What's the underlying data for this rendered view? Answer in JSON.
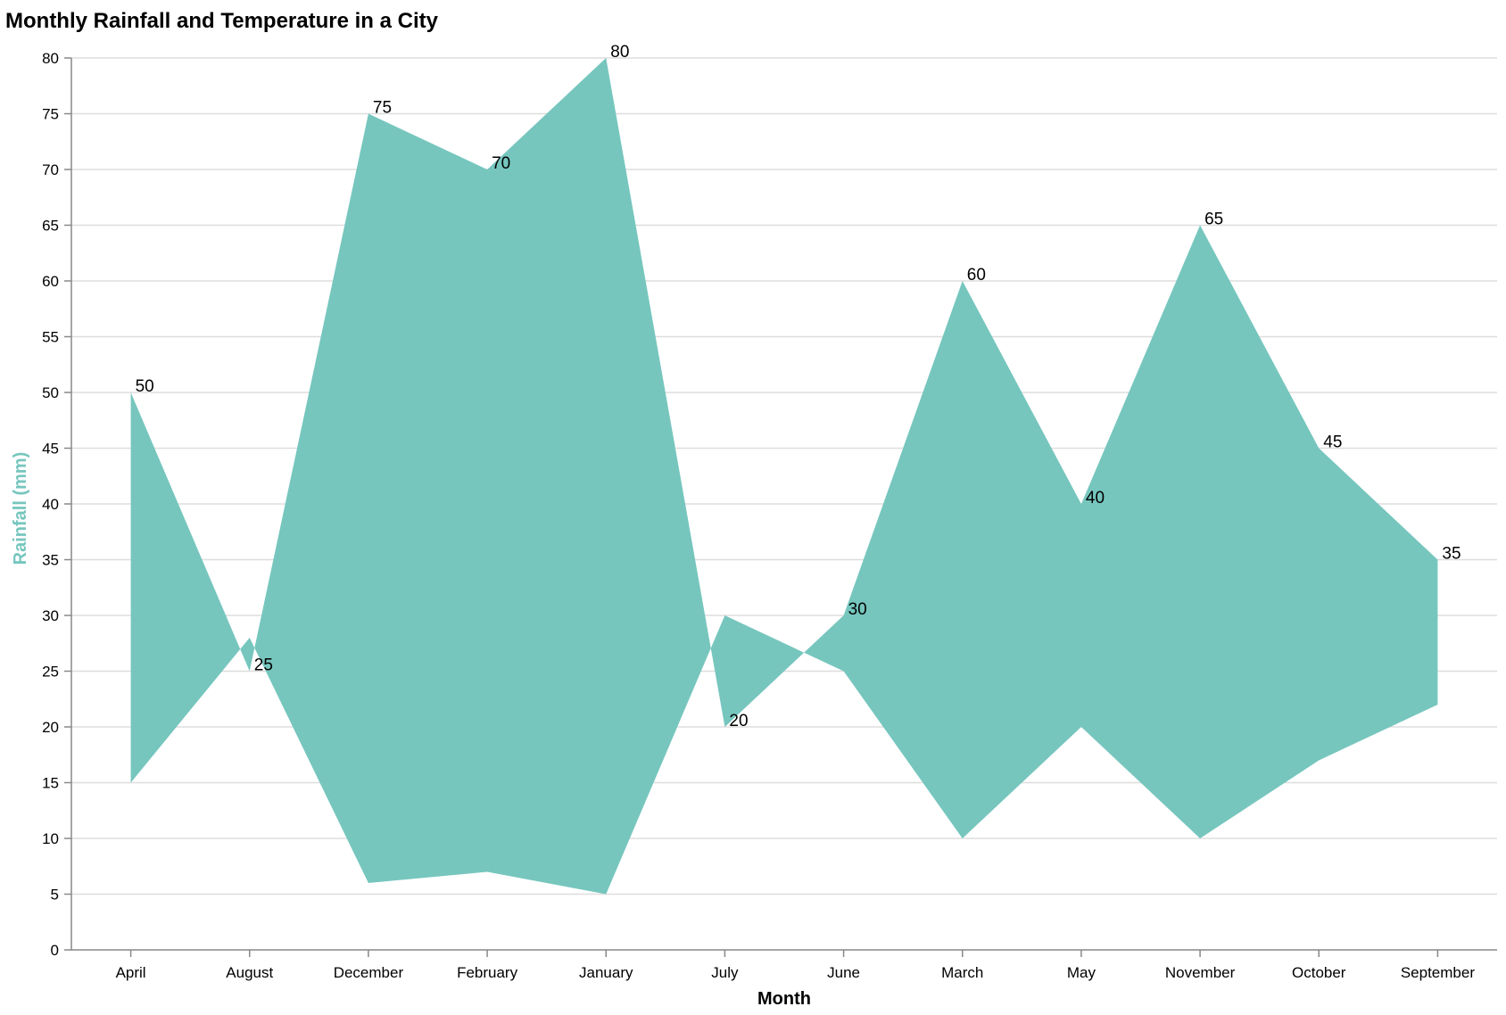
{
  "chart_data": {
    "type": "area",
    "title": "Monthly Rainfall and Temperature in a City",
    "xlabel": "Month",
    "ylabel": "Rainfall (mm)",
    "categories": [
      "April",
      "August",
      "December",
      "February",
      "January",
      "July",
      "June",
      "March",
      "May",
      "November",
      "October",
      "September"
    ],
    "series": [
      {
        "values": [
          50,
          25,
          75,
          70,
          80,
          20,
          30,
          60,
          40,
          65,
          45,
          35
        ],
        "baseline": [
          15,
          28,
          6,
          7,
          5,
          30,
          25,
          10,
          20,
          10,
          17,
          22
        ]
      }
    ],
    "ylim": [
      0,
      80
    ],
    "yticks": [
      0,
      5,
      10,
      15,
      20,
      25,
      30,
      35,
      40,
      45,
      50,
      55,
      60,
      65,
      70,
      75,
      80
    ],
    "grid": true,
    "colors": {
      "area": "#76c6be",
      "ylabel": "#76c6be",
      "axis": "#888888",
      "grid": "#dddddd"
    }
  }
}
